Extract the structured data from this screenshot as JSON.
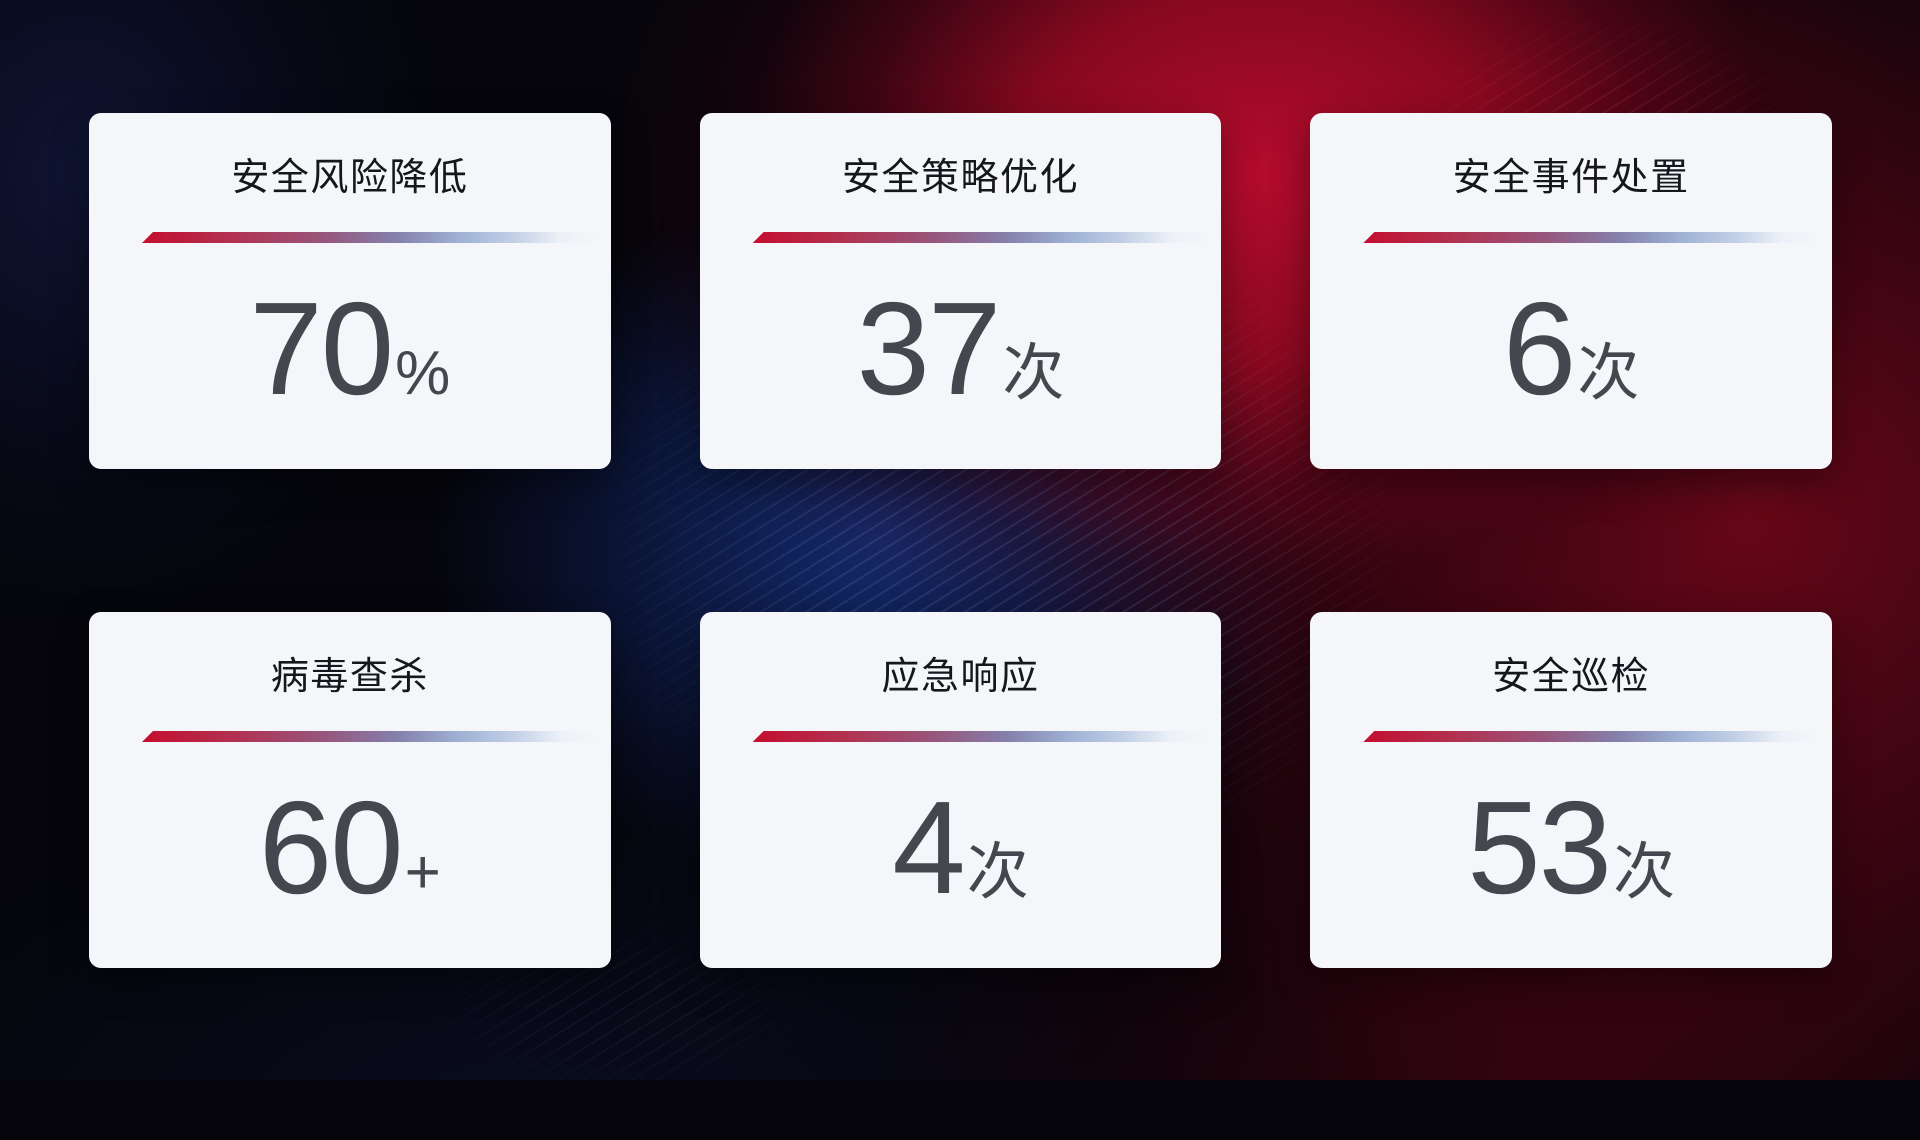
{
  "cards": [
    {
      "title": "安全风险降低",
      "value": "70",
      "unit": "%"
    },
    {
      "title": "安全策略优化",
      "value": "37",
      "unit": "次"
    },
    {
      "title": "安全事件处置",
      "value": "6",
      "unit": "次"
    },
    {
      "title": "病毒查杀",
      "value": "60",
      "unit": "+"
    },
    {
      "title": "应急响应",
      "value": "4",
      "unit": "次"
    },
    {
      "title": "安全巡检",
      "value": "53",
      "unit": "次"
    }
  ],
  "colors": {
    "card_background": "#f4f6f9",
    "title_text": "#16171d",
    "value_text": "#45474e",
    "divider_red": "#c40e2f",
    "divider_blue": "#9fb2d5",
    "background_crimson": "#a80d28",
    "background_navy": "#132a6e",
    "background_base": "#05050b"
  }
}
